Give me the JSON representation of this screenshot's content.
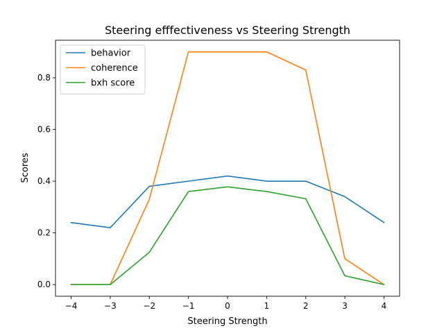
{
  "chart_data": {
    "type": "line",
    "title": "Steering efffectiveness vs Steering Strength",
    "xlabel": "Steering Strength",
    "ylabel": "Scores",
    "x": [
      -4,
      -3,
      -2,
      -1,
      0,
      1,
      2,
      3,
      4
    ],
    "xlim": [
      -4.4,
      4.4
    ],
    "ylim": [
      -0.045,
      0.945
    ],
    "xticks": [
      -4,
      -3,
      -2,
      -1,
      0,
      1,
      2,
      3,
      4
    ],
    "xtick_labels": [
      "−4",
      "−3",
      "−2",
      "−1",
      "0",
      "1",
      "2",
      "3",
      "4"
    ],
    "yticks": [
      0.0,
      0.2,
      0.4,
      0.6,
      0.8
    ],
    "ytick_labels": [
      "0.0",
      "0.2",
      "0.4",
      "0.6",
      "0.8"
    ],
    "grid": false,
    "legend_position": "top-left",
    "series": [
      {
        "name": "behavior",
        "color": "#1f77b4",
        "values": [
          0.24,
          0.22,
          0.38,
          0.4,
          0.42,
          0.4,
          0.4,
          0.34,
          0.24
        ]
      },
      {
        "name": "coherence",
        "color": "#ff7f0e",
        "values": [
          0.0,
          0.0,
          0.33,
          0.9,
          0.9,
          0.9,
          0.83,
          0.1,
          0.0
        ]
      },
      {
        "name": "bxh score",
        "color": "#2ca02c",
        "values": [
          0.0,
          0.0,
          0.125,
          0.36,
          0.378,
          0.36,
          0.332,
          0.034,
          0.0
        ]
      }
    ]
  }
}
